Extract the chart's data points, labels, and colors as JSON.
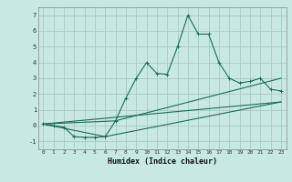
{
  "xlabel": "Humidex (Indice chaleur)",
  "xlim": [
    -0.5,
    23.5
  ],
  "ylim": [
    -1.5,
    7.5
  ],
  "xticks": [
    0,
    1,
    2,
    3,
    4,
    5,
    6,
    7,
    8,
    9,
    10,
    11,
    12,
    13,
    14,
    15,
    16,
    17,
    18,
    19,
    20,
    21,
    22,
    23
  ],
  "yticks": [
    -1,
    0,
    1,
    2,
    3,
    4,
    5,
    6,
    7
  ],
  "bg_color": "#c8e8e4",
  "grid_color": "#a8c8c4",
  "line_color": "#1a6b5a",
  "series1_x": [
    0,
    1,
    2,
    3,
    4,
    5,
    6,
    7,
    8,
    9,
    10,
    11,
    12,
    13,
    14,
    15,
    16,
    17,
    18,
    19,
    20,
    21,
    22,
    23
  ],
  "series1_y": [
    0.1,
    0.0,
    -0.1,
    -0.7,
    -0.75,
    -0.75,
    -0.7,
    0.3,
    1.75,
    3.0,
    4.0,
    3.3,
    3.25,
    5.0,
    7.0,
    5.8,
    5.8,
    4.0,
    3.0,
    2.7,
    2.8,
    3.0,
    2.3,
    2.2
  ],
  "series2_x": [
    0,
    23
  ],
  "series2_y": [
    0.1,
    1.5
  ],
  "series3_x": [
    0,
    6,
    23
  ],
  "series3_y": [
    0.1,
    -0.7,
    1.5
  ],
  "series4_x": [
    0,
    7,
    23
  ],
  "series4_y": [
    0.1,
    0.3,
    3.0
  ]
}
